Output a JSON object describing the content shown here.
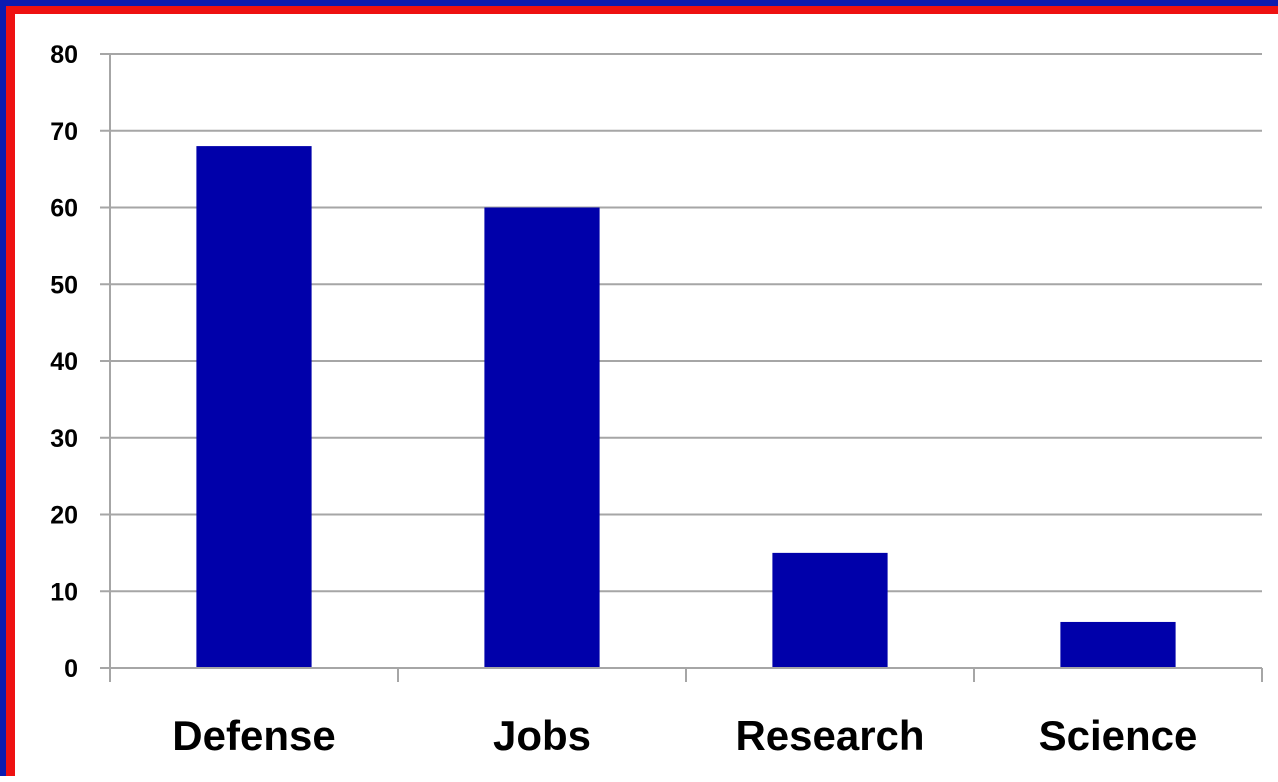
{
  "chart_data": {
    "type": "bar",
    "categories": [
      "Defense",
      "Jobs",
      "Research",
      "Science"
    ],
    "values": [
      68,
      60,
      15,
      6
    ],
    "title": "",
    "xlabel": "",
    "ylabel": "",
    "ylim": [
      0,
      80
    ],
    "yticks": [
      "0",
      "10",
      "20",
      "30",
      "40",
      "50",
      "60",
      "70",
      "80"
    ],
    "grid": true,
    "legend": "none",
    "bar_color": "#0000AA",
    "grid_color": "#A6A6A6"
  }
}
